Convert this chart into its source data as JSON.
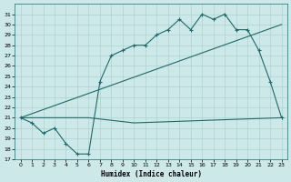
{
  "xlabel": "Humidex (Indice chaleur)",
  "bg_color": "#cde8e8",
  "grid_color": "#b0d0d0",
  "line_color": "#1a6b6b",
  "xlim": [
    -0.5,
    23.5
  ],
  "ylim": [
    17,
    32
  ],
  "yticks": [
    17,
    18,
    19,
    20,
    21,
    22,
    23,
    24,
    25,
    26,
    27,
    28,
    29,
    30,
    31
  ],
  "xticks": [
    0,
    1,
    2,
    3,
    4,
    5,
    6,
    7,
    8,
    9,
    10,
    11,
    12,
    13,
    14,
    15,
    16,
    17,
    18,
    19,
    20,
    21,
    22,
    23
  ],
  "line1_x": [
    0,
    1,
    2,
    3,
    4,
    5,
    6,
    7,
    8,
    9,
    10,
    11,
    12,
    13,
    14,
    15,
    16,
    17,
    18,
    19,
    20,
    21,
    22,
    23
  ],
  "line1_y": [
    21.0,
    20.5,
    19.5,
    20.0,
    18.5,
    17.5,
    17.5,
    24.5,
    27.0,
    27.5,
    28.0,
    28.0,
    29.0,
    29.5,
    30.5,
    29.5,
    31.0,
    30.5,
    31.0,
    29.5,
    29.5,
    27.5,
    24.5,
    21.0
  ],
  "line2_x": [
    0,
    23
  ],
  "line2_y": [
    21.0,
    30.0
  ],
  "line3_x": [
    0,
    6,
    10,
    23
  ],
  "line3_y": [
    21.0,
    21.0,
    20.5,
    21.0
  ]
}
